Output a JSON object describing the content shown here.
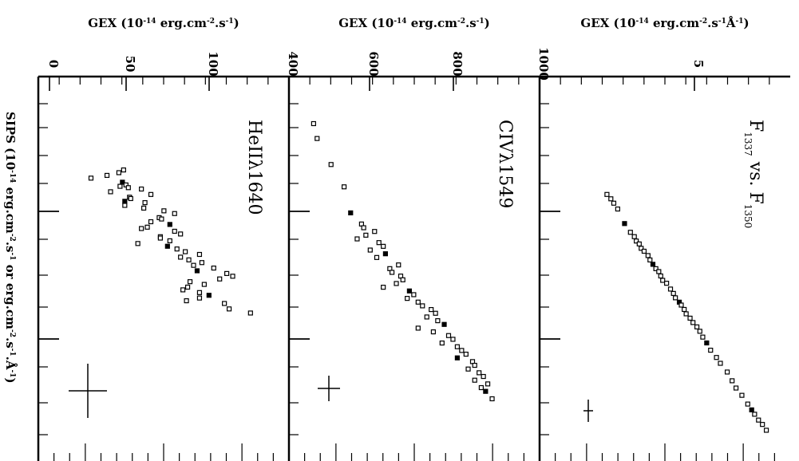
{
  "chart_data": [
    {
      "type": "scatter",
      "label_main": "HeIIλ1640",
      "x_axis_title": {
        "main": "GEX (10",
        "exp1": "-14",
        "mid1": " erg.cm",
        "exp2": "-2",
        "mid2": ".s",
        "exp3": "-1",
        "end": ")"
      },
      "x_ticks": [
        "0",
        "50",
        "100"
      ],
      "x_range": [
        0,
        140
      ],
      "y_range": [
        0,
        35
      ],
      "points": [
        [
          10,
          9
        ],
        [
          12,
          8.2
        ],
        [
          14,
          6.2
        ],
        [
          16,
          3.5
        ],
        [
          19,
          8.8
        ],
        [
          21,
          9.4
        ],
        [
          22,
          8.4
        ],
        [
          23,
          9.8
        ],
        [
          24,
          12
        ],
        [
          26,
          6.8
        ],
        [
          28,
          13.6
        ],
        [
          30,
          10
        ],
        [
          31,
          10.2
        ],
        [
          33,
          9.2
        ],
        [
          34,
          12.6
        ],
        [
          36,
          9.2
        ],
        [
          38,
          12.4
        ],
        [
          40,
          15.8
        ],
        [
          42,
          17.6
        ],
        [
          45,
          15
        ],
        [
          46,
          15.4
        ],
        [
          48,
          13.6
        ],
        [
          50,
          16.8
        ],
        [
          52,
          13
        ],
        [
          53,
          12
        ],
        [
          55,
          17.6
        ],
        [
          57,
          18.6
        ],
        [
          59,
          15.2
        ],
        [
          60,
          15.2
        ],
        [
          62,
          16.8
        ],
        [
          64,
          11.4
        ],
        [
          66,
          16.4
        ],
        [
          68,
          18
        ],
        [
          70,
          19.4
        ],
        [
          72,
          21.8
        ],
        [
          74,
          18.6
        ],
        [
          76,
          20
        ],
        [
          78,
          22.2
        ],
        [
          80,
          20.8
        ],
        [
          82,
          24.2
        ],
        [
          84,
          21.4
        ],
        [
          86,
          26.4
        ],
        [
          88,
          27.4
        ],
        [
          90,
          25.2
        ],
        [
          92,
          20.2
        ],
        [
          94,
          22.6
        ],
        [
          96,
          19.8
        ],
        [
          98,
          19
        ],
        [
          100,
          21.8
        ],
        [
          102,
          23.4
        ],
        [
          104,
          21.8
        ],
        [
          106,
          19.6
        ],
        [
          108,
          26
        ],
        [
          112,
          26.8
        ],
        [
          115,
          30.4
        ]
      ],
      "error_bar": {
        "x": 28,
        "y": 30.5,
        "dx": 10,
        "dy": 6
      }
    },
    {
      "type": "scatter",
      "label_main": "CIVλ1549",
      "x_axis_title": {
        "main": "GEX (10",
        "exp1": "-14",
        "mid1": " erg.cm",
        "exp2": "-2",
        "mid2": ".s",
        "exp3": "-1",
        "end": ")"
      },
      "x_ticks": [
        "400",
        "600",
        "800",
        "1000"
      ],
      "x_range": [
        400,
        1000
      ],
      "y_range": [
        400,
        1000
      ],
      "points": [
        [
          420,
          460
        ],
        [
          440,
          468
        ],
        [
          475,
          500
        ],
        [
          505,
          530
        ],
        [
          540,
          545
        ],
        [
          555,
          570
        ],
        [
          560,
          575
        ],
        [
          565,
          600
        ],
        [
          570,
          580
        ],
        [
          575,
          560
        ],
        [
          580,
          610
        ],
        [
          585,
          620
        ],
        [
          590,
          590
        ],
        [
          595,
          625
        ],
        [
          600,
          605
        ],
        [
          610,
          655
        ],
        [
          615,
          635
        ],
        [
          620,
          640
        ],
        [
          625,
          660
        ],
        [
          630,
          665
        ],
        [
          635,
          650
        ],
        [
          640,
          620
        ],
        [
          645,
          680
        ],
        [
          650,
          690
        ],
        [
          655,
          675
        ],
        [
          660,
          700
        ],
        [
          665,
          710
        ],
        [
          670,
          730
        ],
        [
          675,
          740
        ],
        [
          680,
          720
        ],
        [
          685,
          745
        ],
        [
          690,
          760
        ],
        [
          695,
          700
        ],
        [
          700,
          735
        ],
        [
          705,
          770
        ],
        [
          710,
          780
        ],
        [
          715,
          755
        ],
        [
          720,
          790
        ],
        [
          725,
          800
        ],
        [
          730,
          810
        ],
        [
          735,
          790
        ],
        [
          740,
          825
        ],
        [
          745,
          830
        ],
        [
          750,
          815
        ],
        [
          755,
          840
        ],
        [
          760,
          850
        ],
        [
          765,
          830
        ],
        [
          770,
          860
        ],
        [
          775,
          845
        ],
        [
          780,
          855
        ],
        [
          790,
          870
        ]
      ],
      "error_bar": {
        "x": 538,
        "y": 440,
        "dx": 14,
        "dy": 28
      }
    },
    {
      "type": "scatter",
      "label_main": "F",
      "label_sub1": "1337",
      "label_vs": " vs. F",
      "label_sub2": "1350",
      "x_axis_title": {
        "main": "GEX (10",
        "exp1": "-14",
        "mid1": " erg.cm",
        "exp2": "-2",
        "mid2": ".s",
        "exp3": "-1",
        "end": "Å",
        "exp4": "-1",
        "end2": ")"
      },
      "x_ticks": [
        "5"
      ],
      "x_range": [
        0,
        10
      ],
      "y_range": [
        0,
        10
      ],
      "points": [
        [
          1.2,
          1.2
        ],
        [
          1.35,
          1.4
        ],
        [
          1.5,
          1.55
        ],
        [
          1.7,
          1.75
        ],
        [
          2.2,
          2.1
        ],
        [
          2.5,
          2.4
        ],
        [
          2.65,
          2.6
        ],
        [
          2.8,
          2.7
        ],
        [
          2.9,
          2.85
        ],
        [
          3.05,
          2.95
        ],
        [
          3.15,
          3.1
        ],
        [
          3.3,
          3.3
        ],
        [
          3.45,
          3.4
        ],
        [
          3.6,
          3.55
        ],
        [
          3.75,
          3.7
        ],
        [
          3.85,
          3.85
        ],
        [
          4.0,
          3.95
        ],
        [
          4.15,
          4.05
        ],
        [
          4.25,
          4.25
        ],
        [
          4.45,
          4.45
        ],
        [
          4.6,
          4.6
        ],
        [
          4.75,
          4.7
        ],
        [
          4.9,
          4.9
        ],
        [
          5.0,
          5.0
        ],
        [
          5.15,
          5.15
        ],
        [
          5.3,
          5.25
        ],
        [
          5.45,
          5.45
        ],
        [
          5.6,
          5.6
        ],
        [
          5.75,
          5.8
        ],
        [
          5.9,
          5.95
        ],
        [
          6.1,
          6.1
        ],
        [
          6.3,
          6.3
        ],
        [
          6.55,
          6.5
        ],
        [
          6.8,
          6.8
        ],
        [
          7.0,
          7.0
        ],
        [
          7.3,
          7.35
        ],
        [
          7.6,
          7.6
        ],
        [
          7.85,
          7.8
        ],
        [
          8.1,
          8.1
        ],
        [
          8.4,
          8.4
        ],
        [
          8.6,
          8.6
        ],
        [
          8.75,
          8.75
        ],
        [
          8.95,
          8.95
        ],
        [
          9.1,
          9.15
        ],
        [
          9.3,
          9.35
        ]
      ],
      "error_bar": {
        "x": 2.6,
        "y": 8.3,
        "dx": 0.35,
        "dy": 0.9
      }
    }
  ],
  "y_axis_title": {
    "main": "SIPS (10",
    "exp1": "-14",
    "mid1": " erg.cm",
    "exp2": "-2",
    "mid2": ".s",
    "exp3": "-1",
    "mid3": " or erg.cm",
    "exp4": "-2",
    "mid4": ".s",
    "exp5": "-1",
    "mid5": ".Å",
    "exp6": "-1",
    "end": ")"
  }
}
